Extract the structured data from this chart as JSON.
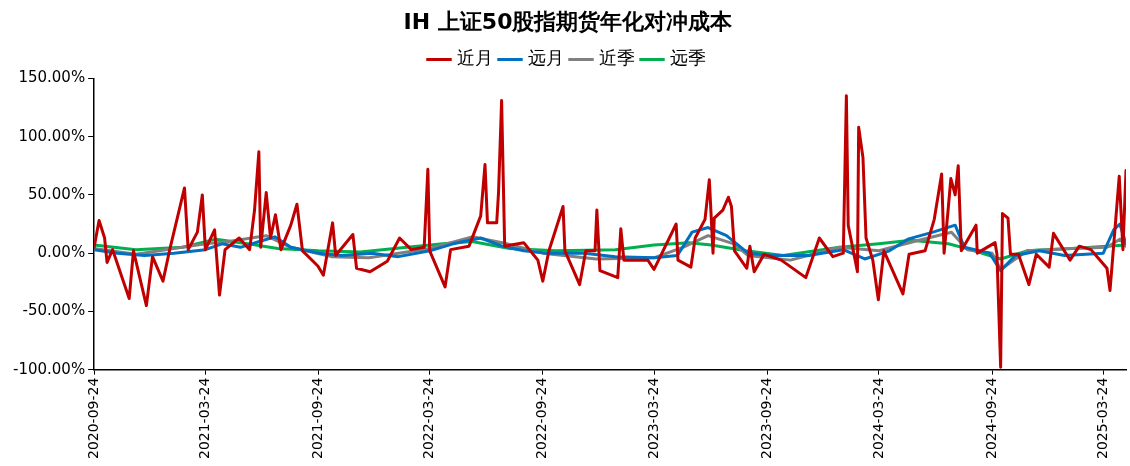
{
  "chart_data": {
    "type": "line",
    "title": "IH 上证50股指期货年化对冲成本",
    "legend": "top",
    "xlim": [
      "2020-09-24",
      "2025-04-30"
    ],
    "xticks": [
      "2020-09-24",
      "2021-03-24",
      "2021-09-24",
      "2022-03-24",
      "2022-09-24",
      "2023-03-24",
      "2023-09-24",
      "2024-03-24",
      "2024-09-24",
      "2025-03-24"
    ],
    "ylim": [
      -100,
      150
    ],
    "yticks": [
      {
        "value": -100,
        "label": "-100.00%"
      },
      {
        "value": -50,
        "label": "-50.00%"
      },
      {
        "value": 0,
        "label": "0.00%"
      },
      {
        "value": 50,
        "label": "50.00%"
      },
      {
        "value": 100,
        "label": "100.00%"
      },
      {
        "value": 150,
        "label": "150.00%"
      }
    ],
    "series": [
      {
        "name": "近月",
        "color": "#c00000",
        "x": [
          "2020-09-24",
          "2020-10-02",
          "2020-10-11",
          "2020-10-15",
          "2020-10-24",
          "2020-11-20",
          "2020-11-27",
          "2020-12-18",
          "2020-12-28",
          "2021-01-14",
          "2021-01-25",
          "2021-02-08",
          "2021-02-18",
          "2021-02-24",
          "2021-03-11",
          "2021-03-19",
          "2021-03-24",
          "2021-04-08",
          "2021-04-16",
          "2021-04-25",
          "2021-05-18",
          "2021-06-04",
          "2021-06-12",
          "2021-06-19",
          "2021-06-22",
          "2021-07-01",
          "2021-07-08",
          "2021-07-16",
          "2021-07-25",
          "2021-08-10",
          "2021-08-20",
          "2021-08-29",
          "2021-09-23",
          "2021-10-02",
          "2021-10-17",
          "2021-10-22",
          "2021-11-19",
          "2021-11-25",
          "2021-12-17",
          "2022-01-14",
          "2022-02-03",
          "2022-02-22",
          "2022-03-15",
          "2022-03-21",
          "2022-03-24",
          "2022-04-18",
          "2022-04-27",
          "2022-05-27",
          "2022-06-15",
          "2022-06-22",
          "2022-06-26",
          "2022-07-11",
          "2022-07-14",
          "2022-07-19",
          "2022-07-24",
          "2022-08-24",
          "2022-09-16",
          "2022-09-24",
          "2022-10-04",
          "2022-10-27",
          "2022-10-30",
          "2022-11-23",
          "2022-12-03",
          "2022-12-18",
          "2022-12-21",
          "2022-12-26",
          "2023-01-24",
          "2023-01-29",
          "2023-02-03",
          "2023-03-14",
          "2023-03-24",
          "2023-04-29",
          "2023-05-02",
          "2023-05-23",
          "2023-05-30",
          "2023-06-15",
          "2023-06-22",
          "2023-06-28",
          "2023-06-30",
          "2023-07-14",
          "2023-07-23",
          "2023-07-28",
          "2023-08-02",
          "2023-08-22",
          "2023-08-27",
          "2023-09-03",
          "2023-09-19",
          "2023-10-17",
          "2023-11-26",
          "2023-12-18",
          "2024-01-09",
          "2024-01-26",
          "2024-01-31",
          "2024-02-03",
          "2024-02-18",
          "2024-02-20",
          "2024-02-27",
          "2024-03-03",
          "2024-03-14",
          "2024-03-23",
          "2024-04-01",
          "2024-05-02",
          "2024-05-12",
          "2024-06-07",
          "2024-06-22",
          "2024-07-04",
          "2024-07-08",
          "2024-07-14",
          "2024-07-19",
          "2024-07-26",
          "2024-07-31",
          "2024-08-05",
          "2024-08-29",
          "2024-08-31",
          "2024-09-29",
          "2024-10-02",
          "2024-10-08",
          "2024-10-11",
          "2024-10-20",
          "2024-10-24",
          "2024-11-06",
          "2024-11-23",
          "2024-12-05",
          "2024-12-26",
          "2025-01-02",
          "2025-01-29",
          "2025-02-13",
          "2025-03-04",
          "2025-03-30",
          "2025-04-04",
          "2025-04-19",
          "2025-04-25",
          "2025-04-30"
        ],
        "values": [
          5,
          28,
          13,
          -8,
          3,
          -39,
          2,
          -45,
          -3,
          -24,
          3,
          34,
          56,
          3,
          18,
          50,
          3,
          20,
          -36,
          3,
          13,
          3,
          37,
          87,
          5,
          52,
          13,
          33,
          3,
          24,
          42,
          2,
          -11,
          -19,
          26,
          -2,
          16,
          -13,
          -16,
          -7,
          13,
          3,
          5,
          72,
          2,
          -29,
          3,
          6,
          32,
          76,
          26,
          26,
          52,
          131,
          6,
          9,
          -6,
          -24,
          2,
          40,
          2,
          -27,
          2,
          2,
          37,
          -15,
          -21,
          21,
          -6,
          -6,
          -14,
          25,
          -6,
          -12,
          13,
          29,
          63,
          0,
          30,
          37,
          48,
          40,
          2,
          -13,
          6,
          -16,
          -1,
          -6,
          -21,
          13,
          -3,
          0,
          135,
          24,
          -16,
          108,
          82,
          13,
          -6,
          -40,
          2,
          -35,
          -1,
          2,
          29,
          68,
          0,
          34,
          64,
          50,
          75,
          2,
          24,
          0,
          9,
          -1,
          -98,
          34,
          30,
          -1,
          -1,
          -27,
          -1,
          -12,
          17,
          -6,
          6,
          3,
          -13,
          -32,
          66,
          3,
          71
        ]
      },
      {
        "name": "远月",
        "color": "#0070c0",
        "x": [
          "2020-09-24",
          "2020-11-01",
          "2020-12-15",
          "2021-02-01",
          "2021-03-24",
          "2021-04-20",
          "2021-05-20",
          "2021-06-20",
          "2021-07-15",
          "2021-08-10",
          "2021-09-24",
          "2021-11-01",
          "2021-12-20",
          "2022-02-01",
          "2022-03-24",
          "2022-05-01",
          "2022-06-15",
          "2022-07-20",
          "2022-08-24",
          "2022-10-01",
          "2022-12-01",
          "2023-01-20",
          "2023-03-24",
          "2023-05-01",
          "2023-05-25",
          "2023-06-20",
          "2023-07-20",
          "2023-08-24",
          "2023-10-01",
          "2023-12-01",
          "2024-01-26",
          "2024-03-01",
          "2024-04-10",
          "2024-05-10",
          "2024-06-20",
          "2024-07-26",
          "2024-08-10",
          "2024-09-20",
          "2024-10-08",
          "2024-11-01",
          "2024-12-10",
          "2025-01-20",
          "2025-03-24",
          "2025-04-10",
          "2025-04-20",
          "2025-04-30"
        ],
        "values": [
          3,
          0,
          -2,
          0,
          3,
          8,
          5,
          10,
          14,
          5,
          0,
          -2,
          0,
          -3,
          2,
          8,
          13,
          6,
          2,
          0,
          0,
          -3,
          -4,
          -2,
          18,
          22,
          15,
          0,
          -2,
          -2,
          3,
          -5,
          2,
          12,
          18,
          24,
          5,
          0,
          -15,
          -2,
          2,
          -2,
          0,
          20,
          25,
          8
        ]
      },
      {
        "name": "近季",
        "color": "#808080",
        "x": [
          "2020-09-24",
          "2020-12-01",
          "2021-03-24",
          "2021-05-01",
          "2021-07-01",
          "2021-08-10",
          "2021-10-15",
          "2021-12-15",
          "2022-03-24",
          "2022-06-01",
          "2022-07-20",
          "2022-09-24",
          "2022-12-20",
          "2023-03-24",
          "2023-05-10",
          "2023-06-20",
          "2023-08-01",
          "2023-08-24",
          "2023-11-01",
          "2024-01-20",
          "2024-03-24",
          "2024-05-20",
          "2024-07-20",
          "2024-08-15",
          "2024-09-24",
          "2024-10-08",
          "2024-11-20",
          "2025-02-01",
          "2025-03-30",
          "2025-04-20",
          "2025-04-30"
        ],
        "values": [
          4,
          -1,
          8,
          10,
          15,
          5,
          -3,
          -4,
          4,
          14,
          9,
          0,
          -5,
          -4,
          5,
          15,
          8,
          -2,
          -6,
          5,
          2,
          10,
          18,
          3,
          0,
          -14,
          2,
          4,
          5,
          12,
          6
        ]
      },
      {
        "name": "远季",
        "color": "#00b050",
        "x": [
          "2020-09-24",
          "2020-12-01",
          "2021-02-15",
          "2021-04-10",
          "2021-06-01",
          "2021-07-20",
          "2021-09-24",
          "2021-12-01",
          "2022-02-15",
          "2022-04-15",
          "2022-06-01",
          "2022-08-01",
          "2022-10-15",
          "2023-01-20",
          "2023-03-24",
          "2023-05-20",
          "2023-06-25",
          "2023-08-20",
          "2023-10-20",
          "2024-01-20",
          "2024-03-24",
          "2024-05-15",
          "2024-07-15",
          "2024-08-20",
          "2024-10-08",
          "2024-11-20",
          "2025-02-01",
          "2025-03-30",
          "2025-04-30"
        ],
        "values": [
          7,
          3,
          5,
          12,
          8,
          4,
          2,
          1,
          5,
          8,
          10,
          4,
          2,
          3,
          7,
          9,
          7,
          2,
          -2,
          5,
          8,
          11,
          8,
          3,
          -5,
          2,
          4,
          6,
          7
        ]
      }
    ]
  }
}
